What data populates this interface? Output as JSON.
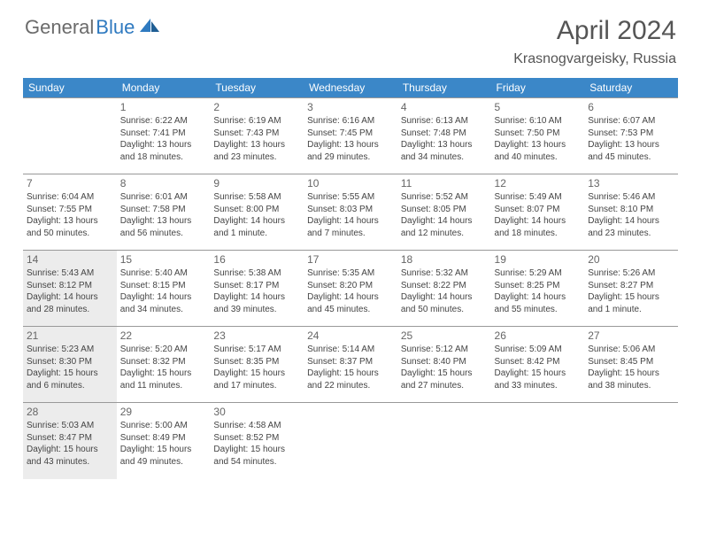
{
  "logo": {
    "part1": "General",
    "part2": "Blue"
  },
  "title": "April 2024",
  "location": "Krasnogvargeisky, Russia",
  "colors": {
    "header_bg": "#3b87c8",
    "header_text": "#ffffff",
    "shaded_bg": "#ececec",
    "border": "#999999",
    "text": "#444444",
    "logo_gray": "#6b6b6b",
    "logo_blue": "#2f7ac0"
  },
  "weekdays": [
    "Sunday",
    "Monday",
    "Tuesday",
    "Wednesday",
    "Thursday",
    "Friday",
    "Saturday"
  ],
  "weeks": [
    [
      {
        "blank": true
      },
      {
        "n": "1",
        "sr": "Sunrise: 6:22 AM",
        "ss": "Sunset: 7:41 PM",
        "dl": "Daylight: 13 hours and 18 minutes."
      },
      {
        "n": "2",
        "sr": "Sunrise: 6:19 AM",
        "ss": "Sunset: 7:43 PM",
        "dl": "Daylight: 13 hours and 23 minutes."
      },
      {
        "n": "3",
        "sr": "Sunrise: 6:16 AM",
        "ss": "Sunset: 7:45 PM",
        "dl": "Daylight: 13 hours and 29 minutes."
      },
      {
        "n": "4",
        "sr": "Sunrise: 6:13 AM",
        "ss": "Sunset: 7:48 PM",
        "dl": "Daylight: 13 hours and 34 minutes."
      },
      {
        "n": "5",
        "sr": "Sunrise: 6:10 AM",
        "ss": "Sunset: 7:50 PM",
        "dl": "Daylight: 13 hours and 40 minutes."
      },
      {
        "n": "6",
        "sr": "Sunrise: 6:07 AM",
        "ss": "Sunset: 7:53 PM",
        "dl": "Daylight: 13 hours and 45 minutes."
      }
    ],
    [
      {
        "n": "7",
        "sr": "Sunrise: 6:04 AM",
        "ss": "Sunset: 7:55 PM",
        "dl": "Daylight: 13 hours and 50 minutes."
      },
      {
        "n": "8",
        "sr": "Sunrise: 6:01 AM",
        "ss": "Sunset: 7:58 PM",
        "dl": "Daylight: 13 hours and 56 minutes."
      },
      {
        "n": "9",
        "sr": "Sunrise: 5:58 AM",
        "ss": "Sunset: 8:00 PM",
        "dl": "Daylight: 14 hours and 1 minute."
      },
      {
        "n": "10",
        "sr": "Sunrise: 5:55 AM",
        "ss": "Sunset: 8:03 PM",
        "dl": "Daylight: 14 hours and 7 minutes."
      },
      {
        "n": "11",
        "sr": "Sunrise: 5:52 AM",
        "ss": "Sunset: 8:05 PM",
        "dl": "Daylight: 14 hours and 12 minutes."
      },
      {
        "n": "12",
        "sr": "Sunrise: 5:49 AM",
        "ss": "Sunset: 8:07 PM",
        "dl": "Daylight: 14 hours and 18 minutes."
      },
      {
        "n": "13",
        "sr": "Sunrise: 5:46 AM",
        "ss": "Sunset: 8:10 PM",
        "dl": "Daylight: 14 hours and 23 minutes."
      }
    ],
    [
      {
        "n": "14",
        "sr": "Sunrise: 5:43 AM",
        "ss": "Sunset: 8:12 PM",
        "dl": "Daylight: 14 hours and 28 minutes.",
        "shaded": true
      },
      {
        "n": "15",
        "sr": "Sunrise: 5:40 AM",
        "ss": "Sunset: 8:15 PM",
        "dl": "Daylight: 14 hours and 34 minutes."
      },
      {
        "n": "16",
        "sr": "Sunrise: 5:38 AM",
        "ss": "Sunset: 8:17 PM",
        "dl": "Daylight: 14 hours and 39 minutes."
      },
      {
        "n": "17",
        "sr": "Sunrise: 5:35 AM",
        "ss": "Sunset: 8:20 PM",
        "dl": "Daylight: 14 hours and 45 minutes."
      },
      {
        "n": "18",
        "sr": "Sunrise: 5:32 AM",
        "ss": "Sunset: 8:22 PM",
        "dl": "Daylight: 14 hours and 50 minutes."
      },
      {
        "n": "19",
        "sr": "Sunrise: 5:29 AM",
        "ss": "Sunset: 8:25 PM",
        "dl": "Daylight: 14 hours and 55 minutes."
      },
      {
        "n": "20",
        "sr": "Sunrise: 5:26 AM",
        "ss": "Sunset: 8:27 PM",
        "dl": "Daylight: 15 hours and 1 minute."
      }
    ],
    [
      {
        "n": "21",
        "sr": "Sunrise: 5:23 AM",
        "ss": "Sunset: 8:30 PM",
        "dl": "Daylight: 15 hours and 6 minutes.",
        "shaded": true
      },
      {
        "n": "22",
        "sr": "Sunrise: 5:20 AM",
        "ss": "Sunset: 8:32 PM",
        "dl": "Daylight: 15 hours and 11 minutes."
      },
      {
        "n": "23",
        "sr": "Sunrise: 5:17 AM",
        "ss": "Sunset: 8:35 PM",
        "dl": "Daylight: 15 hours and 17 minutes."
      },
      {
        "n": "24",
        "sr": "Sunrise: 5:14 AM",
        "ss": "Sunset: 8:37 PM",
        "dl": "Daylight: 15 hours and 22 minutes."
      },
      {
        "n": "25",
        "sr": "Sunrise: 5:12 AM",
        "ss": "Sunset: 8:40 PM",
        "dl": "Daylight: 15 hours and 27 minutes."
      },
      {
        "n": "26",
        "sr": "Sunrise: 5:09 AM",
        "ss": "Sunset: 8:42 PM",
        "dl": "Daylight: 15 hours and 33 minutes."
      },
      {
        "n": "27",
        "sr": "Sunrise: 5:06 AM",
        "ss": "Sunset: 8:45 PM",
        "dl": "Daylight: 15 hours and 38 minutes."
      }
    ],
    [
      {
        "n": "28",
        "sr": "Sunrise: 5:03 AM",
        "ss": "Sunset: 8:47 PM",
        "dl": "Daylight: 15 hours and 43 minutes.",
        "shaded": true
      },
      {
        "n": "29",
        "sr": "Sunrise: 5:00 AM",
        "ss": "Sunset: 8:49 PM",
        "dl": "Daylight: 15 hours and 49 minutes."
      },
      {
        "n": "30",
        "sr": "Sunrise: 4:58 AM",
        "ss": "Sunset: 8:52 PM",
        "dl": "Daylight: 15 hours and 54 minutes."
      },
      {
        "blank": true
      },
      {
        "blank": true
      },
      {
        "blank": true
      },
      {
        "blank": true
      }
    ]
  ]
}
